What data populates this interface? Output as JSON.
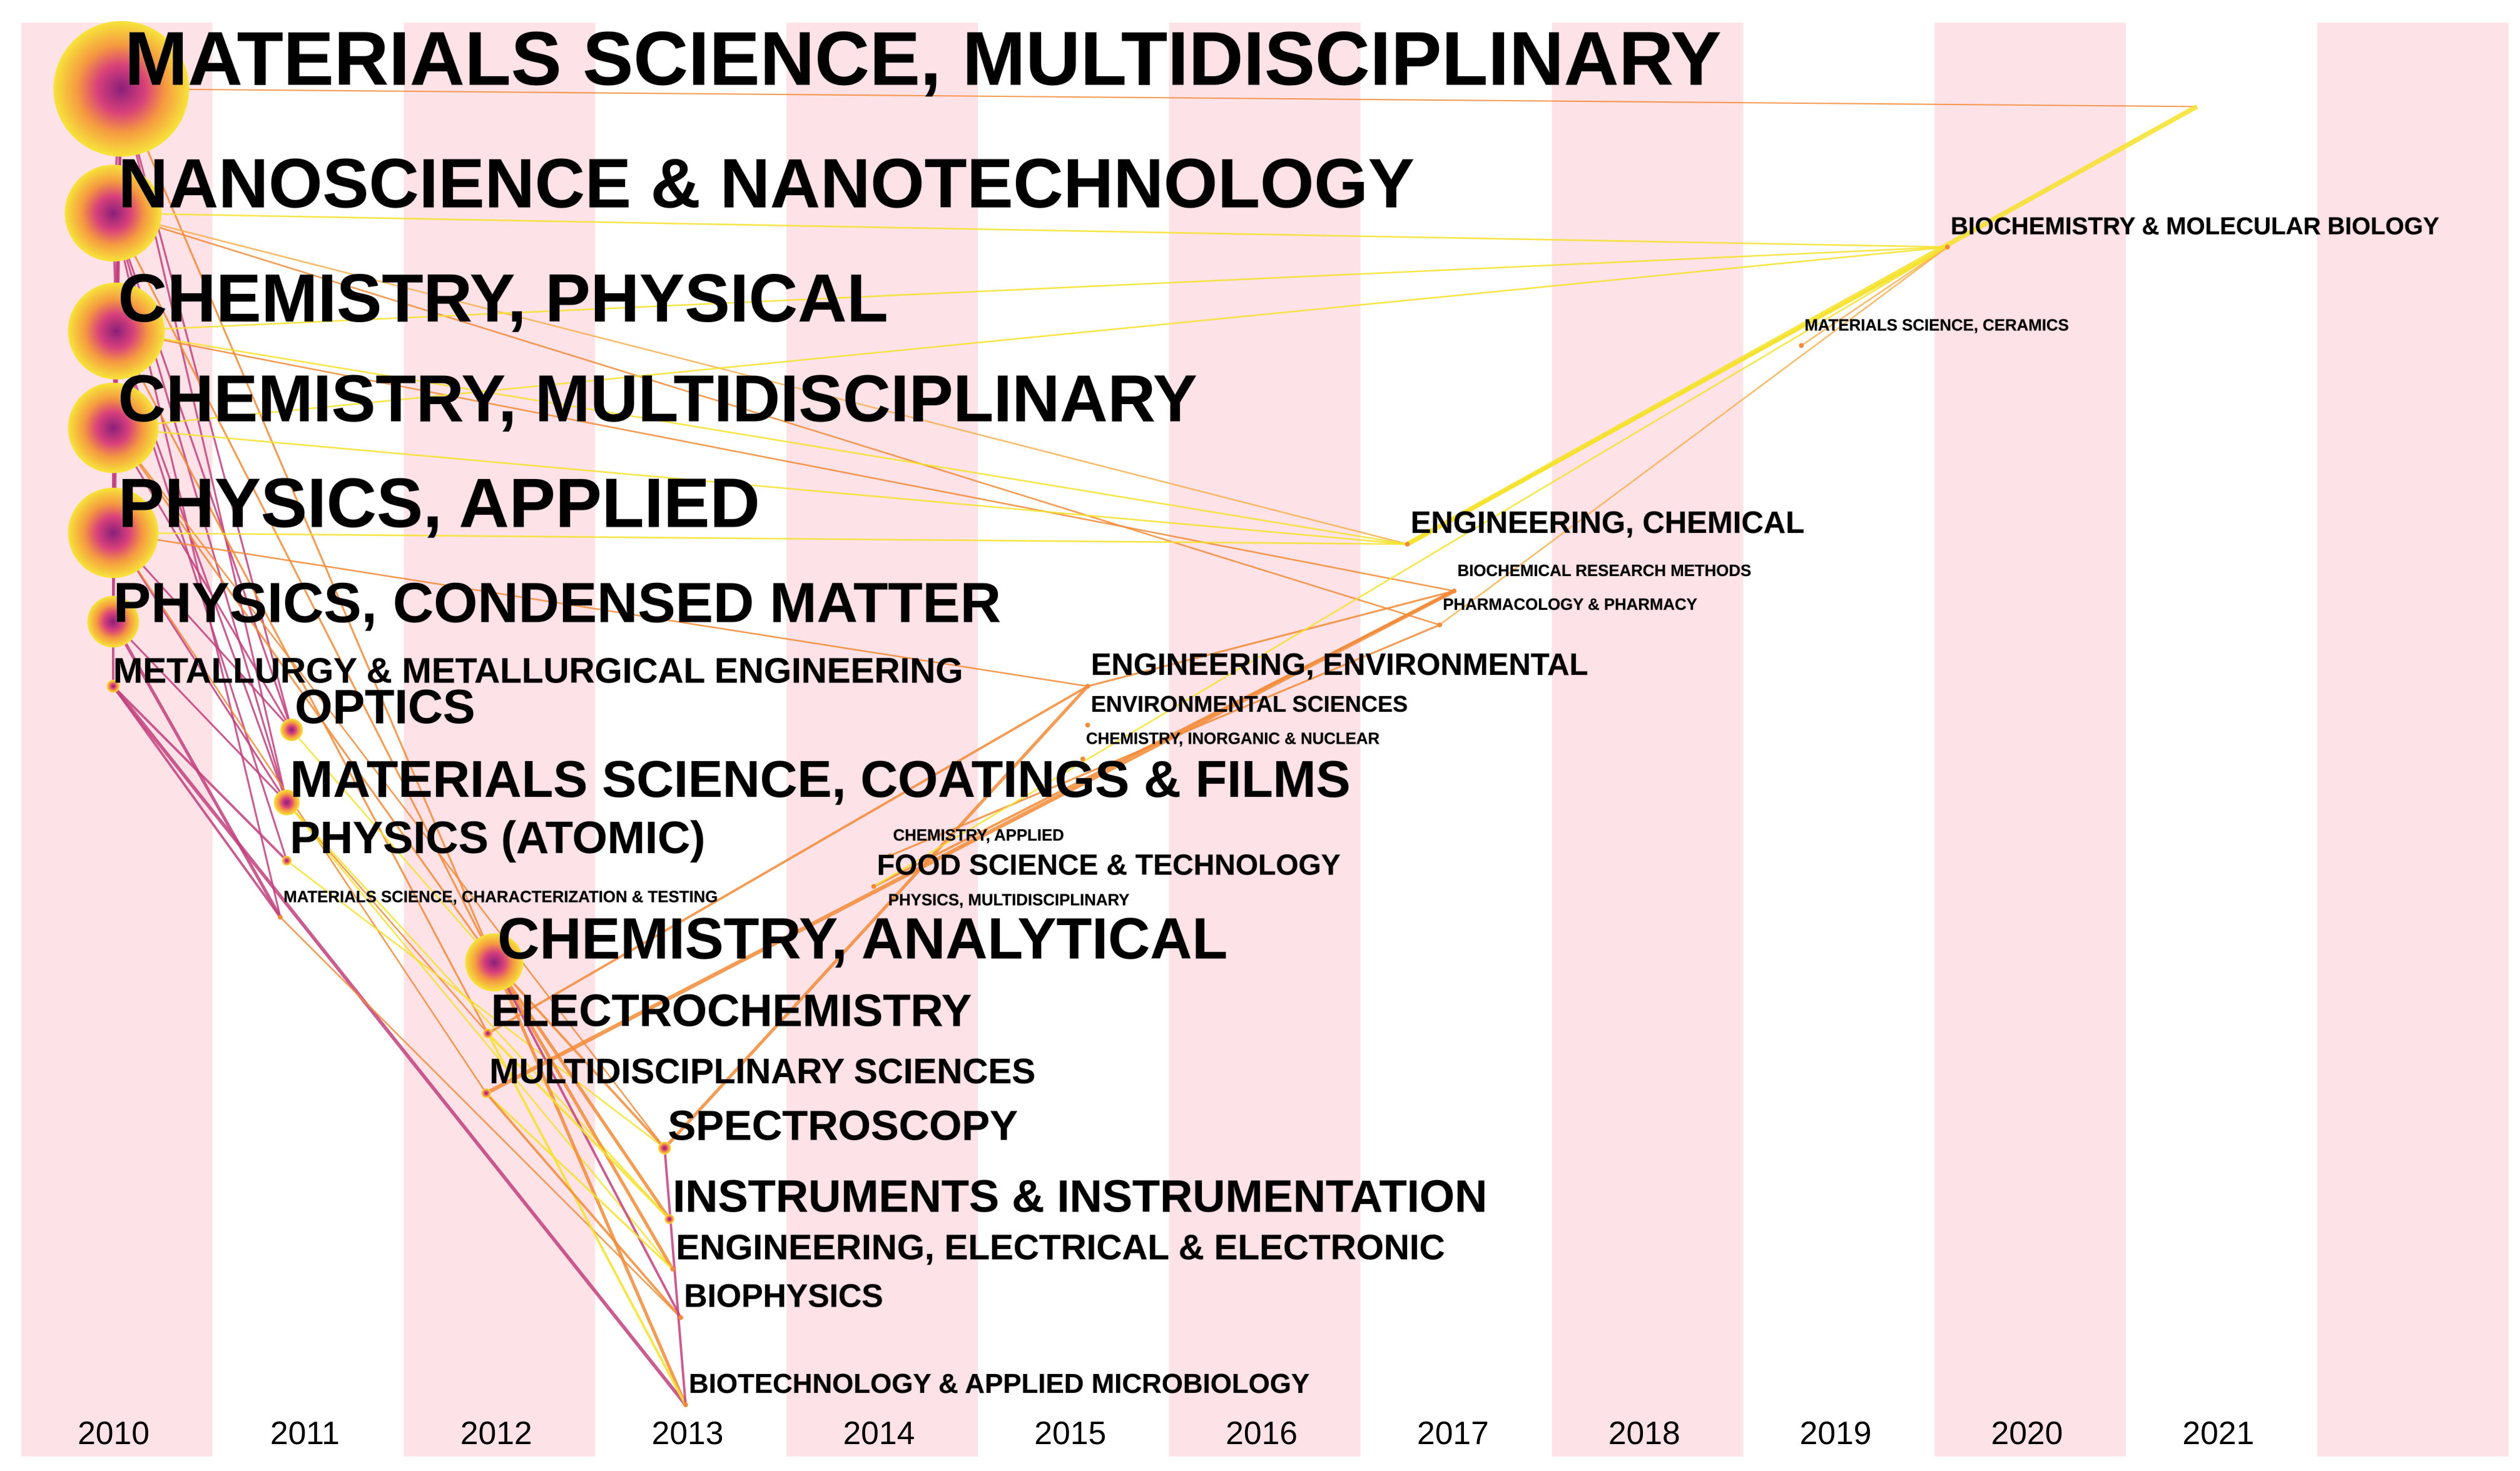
{
  "chart_data": {
    "type": "timezone",
    "years": [
      2010,
      2011,
      2012,
      2013,
      2014,
      2015,
      2016,
      2017,
      2018,
      2019,
      2020,
      2021
    ],
    "nodes": [
      {
        "label": "MATERIALS SCIENCE, MULTIDISCIPLINARY",
        "year": 2010
      },
      {
        "label": "NANOSCIENCE & NANOTECHNOLOGY",
        "year": 2010
      },
      {
        "label": "CHEMISTRY, PHYSICAL",
        "year": 2010
      },
      {
        "label": "CHEMISTRY, MULTIDISCIPLINARY",
        "year": 2010
      },
      {
        "label": "PHYSICS, APPLIED",
        "year": 2010
      },
      {
        "label": "PHYSICS, CONDENSED MATTER",
        "year": 2010
      },
      {
        "label": "METALLURGY & METALLURGICAL ENGINEERING",
        "year": 2010
      },
      {
        "label": "OPTICS",
        "year": 2011
      },
      {
        "label": "MATERIALS SCIENCE, COATINGS & FILMS",
        "year": 2011
      },
      {
        "label": "PHYSICS (ATOMIC)",
        "year": 2011
      },
      {
        "label": "MATERIALS SCIENCE, CHARACTERIZATION & TESTING",
        "year": 2011
      },
      {
        "label": "CHEMISTRY, ANALYTICAL",
        "year": 2012
      },
      {
        "label": "ELECTROCHEMISTRY",
        "year": 2012
      },
      {
        "label": "MULTIDISCIPLINARY SCIENCES",
        "year": 2012
      },
      {
        "label": "SPECTROSCOPY",
        "year": 2013
      },
      {
        "label": "INSTRUMENTS & INSTRUMENTATION",
        "year": 2013
      },
      {
        "label": "ENGINEERING, ELECTRICAL & ELECTRONIC",
        "year": 2013
      },
      {
        "label": "BIOPHYSICS",
        "year": 2013
      },
      {
        "label": "BIOTECHNOLOGY & APPLIED MICROBIOLOGY",
        "year": 2013
      },
      {
        "label": "CHEMISTRY, APPLIED",
        "year": 2014
      },
      {
        "label": "FOOD SCIENCE & TECHNOLOGY",
        "year": 2014
      },
      {
        "label": "PHYSICS, MULTIDISCIPLINARY",
        "year": 2014
      },
      {
        "label": "ENGINEERING, ENVIRONMENTAL",
        "year": 2015
      },
      {
        "label": "ENVIRONMENTAL SCIENCES",
        "year": 2015
      },
      {
        "label": "CHEMISTRY, INORGANIC & NUCLEAR",
        "year": 2015
      },
      {
        "label": "ENGINEERING, CHEMICAL",
        "year": 2017
      },
      {
        "label": "BIOCHEMICAL RESEARCH METHODS",
        "year": 2017
      },
      {
        "label": "PHARMACOLOGY & PHARMACY",
        "year": 2017
      },
      {
        "label": "MATERIALS SCIENCE, CERAMICS",
        "year": 2019
      },
      {
        "label": "BIOCHEMISTRY & MOLECULAR BIOLOGY",
        "year": 2020
      }
    ]
  }
}
